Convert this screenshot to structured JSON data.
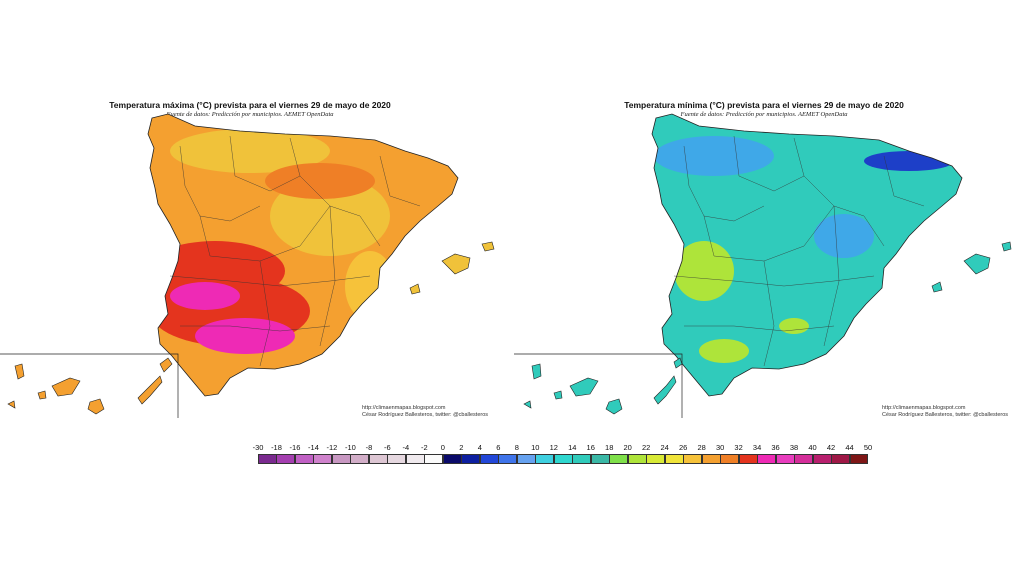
{
  "maps": [
    {
      "id": "max",
      "title": "Temperatura máxima (°C) prevista para el viernes 29 de mayo de 2020",
      "source": "Fuente de datos: Predicción por municipios. AEMET OpenData",
      "credit_url": "http://climaenmapas.blogspot.com",
      "credit_author": "César Rodríguez Ballesteros, twitter: @cballesteros"
    },
    {
      "id": "min",
      "title": "Temperatura mínima (°C) prevista para el viernes 29 de mayo de 2020",
      "source": "Fuente de datos: Predicción por municipios. AEMET OpenData",
      "credit_url": "http://climaenmapas.blogspot.com",
      "credit_author": "César Rodríguez Ballesteros, twitter: @cballesteros"
    }
  ],
  "legend": {
    "labels": [
      "-30",
      "-18",
      "-16",
      "-14",
      "-12",
      "-10",
      "-8",
      "-6",
      "-4",
      "-2",
      "0",
      "2",
      "4",
      "6",
      "8",
      "10",
      "12",
      "14",
      "16",
      "18",
      "20",
      "22",
      "24",
      "26",
      "28",
      "30",
      "32",
      "34",
      "36",
      "38",
      "40",
      "42",
      "44",
      "50"
    ],
    "colors": [
      "#7a2a8f",
      "#a43fb0",
      "#c060c4",
      "#cf82cc",
      "#c898c2",
      "#d2aec8",
      "#ddc6d3",
      "#e6d8e0",
      "#f0eaee",
      "#fbfbfb",
      "#0a0a6a",
      "#0d1fa0",
      "#2247d8",
      "#3f74ea",
      "#66a2f0",
      "#3fd0e0",
      "#2fd7cf",
      "#30cbbb",
      "#3ab8a6",
      "#7fe04a",
      "#aee43a",
      "#d8ea36",
      "#f0e43a",
      "#f6c23a",
      "#f4a030",
      "#ef7f26",
      "#e4341e",
      "#ee2ab5",
      "#e83dbe",
      "#d42e9a",
      "#b8206e",
      "#9e1846",
      "#7e1616"
    ]
  },
  "colors": {
    "max_base": "#f4a030",
    "max_hot": "#e4341e",
    "max_very_hot": "#ee2ab5",
    "max_mild": "#f0c23a",
    "min_base": "#30cbbb",
    "min_cool": "#3fa8e8",
    "min_warm": "#aee43a",
    "min_cold": "#1d3fc8"
  }
}
